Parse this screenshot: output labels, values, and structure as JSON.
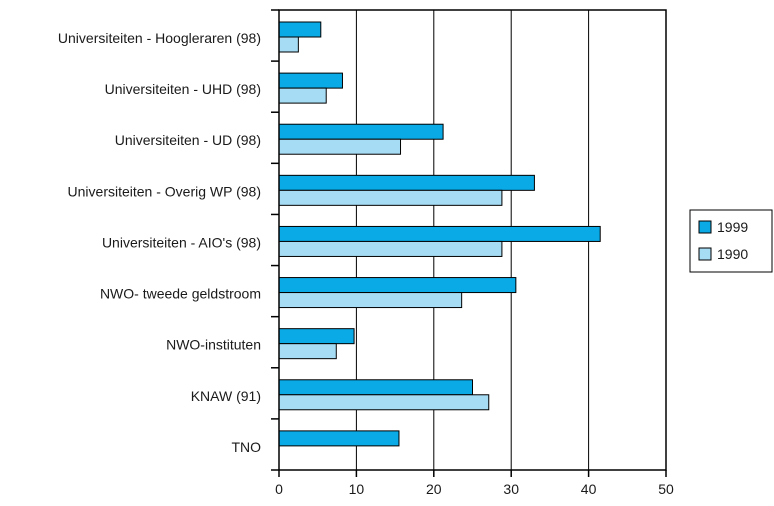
{
  "chart_data": {
    "type": "bar",
    "orientation": "horizontal",
    "categories": [
      "Universiteiten - Hoogleraren (98)",
      "Universiteiten - UHD (98)",
      "Universiteiten - UD (98)",
      "Universiteiten - Overig WP (98)",
      "Universiteiten - AIO's (98)",
      "NWO- tweede geldstroom",
      "NWO-instituten",
      "KNAW (91)",
      "TNO"
    ],
    "series": [
      {
        "name": "1999",
        "color": "#0aaae6",
        "values": [
          5.4,
          8.2,
          21.2,
          33.0,
          41.5,
          30.6,
          9.7,
          25.0,
          15.5
        ]
      },
      {
        "name": "1990",
        "color": "#a6dcf4",
        "values": [
          2.5,
          6.1,
          15.7,
          28.8,
          28.8,
          23.6,
          7.4,
          27.1,
          null
        ]
      }
    ],
    "xlim": [
      0,
      50
    ],
    "xticks": [
      0,
      10,
      20,
      30,
      40,
      50
    ],
    "grid": "vertical",
    "legend": "right"
  }
}
